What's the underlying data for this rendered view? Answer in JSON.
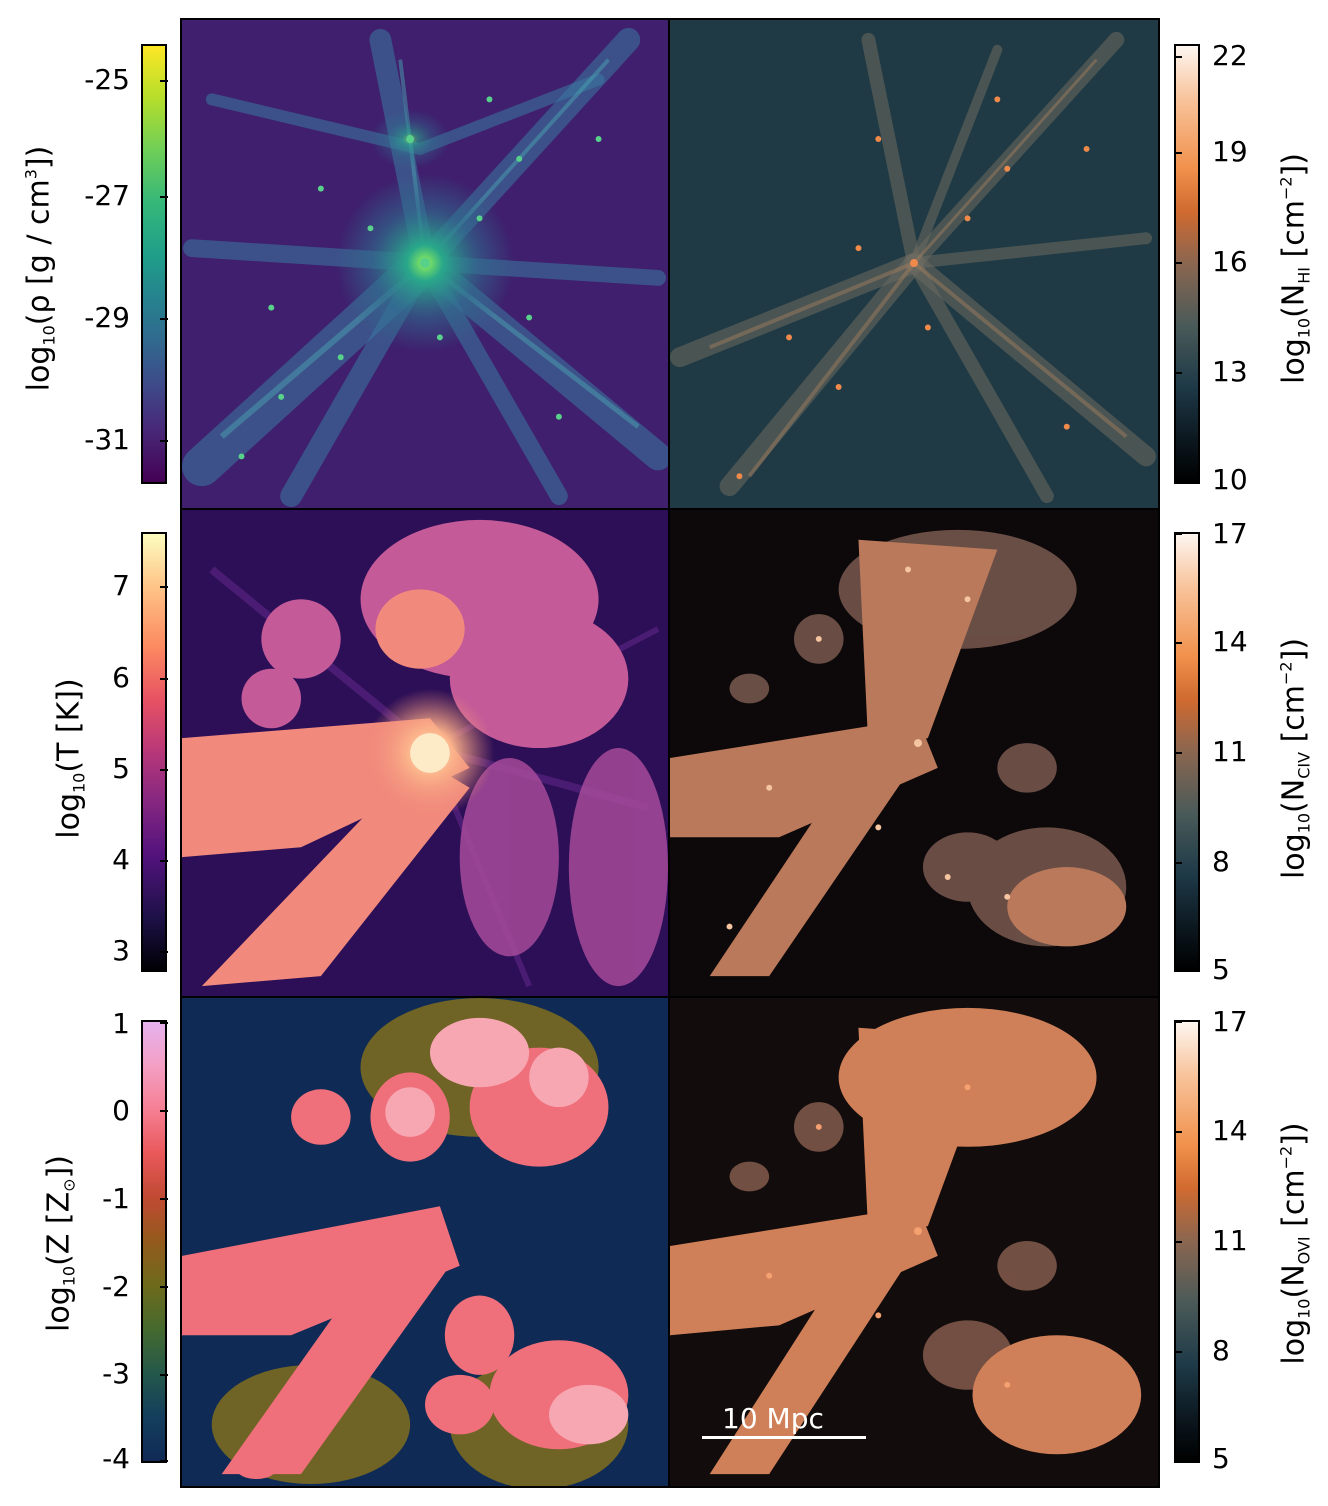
{
  "figure": {
    "colorbars": {
      "density": {
        "label_main": "log",
        "label_sub": "10",
        "label_rest": "(ρ [g / cm",
        "label_sup": "3",
        "label_end": "])",
        "ticks": [
          "-25",
          "-27",
          "-29",
          "-31"
        ],
        "colormap": "viridis"
      },
      "temperature": {
        "label_main": "log",
        "label_sub": "10",
        "label_rest": "(T [K])",
        "ticks": [
          "7",
          "6",
          "5",
          "4",
          "3"
        ],
        "colormap": "magma"
      },
      "metallicity": {
        "label_main": "log",
        "label_sub": "10",
        "label_rest": "(Z [Z",
        "label_sub2": "⊙",
        "label_end": "])",
        "ticks": [
          "1",
          "0",
          "-1",
          "-2",
          "-3",
          "-4"
        ],
        "colormap": "cubehelix-like"
      },
      "nhi": {
        "label_main": "log",
        "label_sub": "10",
        "label_rest": "(N",
        "label_sub2": "HI",
        "label_rest2": " [cm",
        "label_sup": "−2",
        "label_end": "])",
        "ticks": [
          "22",
          "19",
          "16",
          "13",
          "10"
        ],
        "colormap": "bone-orange"
      },
      "nciv": {
        "label_main": "log",
        "label_sub": "10",
        "label_rest": "(N",
        "label_sub2": "CIV",
        "label_rest2": " [cm",
        "label_sup": "−2",
        "label_end": "])",
        "ticks": [
          "17",
          "14",
          "11",
          "8",
          "5"
        ],
        "colormap": "bone-orange"
      },
      "novi": {
        "label_main": "log",
        "label_sub": "10",
        "label_rest": "(N",
        "label_sub2": "OVI",
        "label_rest2": " [cm",
        "label_sup": "−2",
        "label_end": "])",
        "ticks": [
          "17",
          "14",
          "11",
          "8",
          "5"
        ],
        "colormap": "bone-orange"
      }
    },
    "scalebar": {
      "label": "10 Mpc"
    }
  }
}
